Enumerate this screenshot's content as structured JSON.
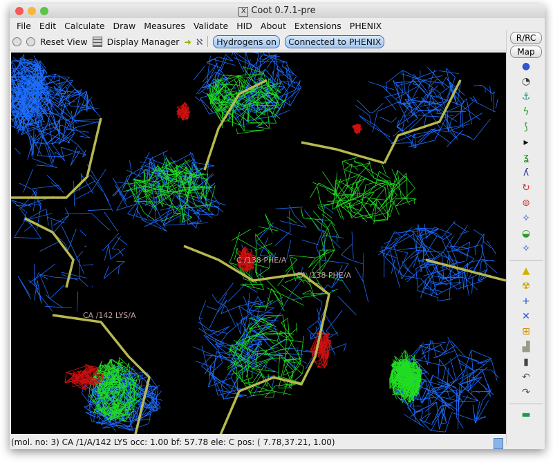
{
  "window": {
    "title": "Coot 0.7.1-pre",
    "title_icon": "x11-icon"
  },
  "menu": [
    "File",
    "Edit",
    "Calculate",
    "Draw",
    "Measures",
    "Validate",
    "HID",
    "About",
    "Extensions",
    "PHENIX"
  ],
  "toolbar": {
    "reset_view": "Reset View",
    "display_manager": "Display Manager",
    "hydrogens": "Hydrogens on",
    "phenix": "Connected to PHENIX"
  },
  "side": {
    "rrc": "R/RC",
    "map": "Map",
    "icons": [
      "refine-icon",
      "regularize-icon",
      "rigid-body-icon",
      "real-space-refine-icon",
      "backrub-icon",
      "more-arrow-icon",
      "rotamer-icon",
      "torsion-icon",
      "flip-peptide-icon",
      "side-chain-180-icon",
      "edit-chi-icon",
      "side-icon",
      "pep-flip-icon",
      "mutate-icon",
      "mutate-autofit-icon",
      "add-alt-conf-icon",
      "add-atom-icon",
      "place-atom-icon",
      "clear-icon",
      "delete-icon",
      "undo-icon",
      "redo-icon",
      "flag-icon"
    ]
  },
  "labels": {
    "lys": "CA /142 LYS/A",
    "phe_c": "C /138 PHE/A",
    "phe_ca": "CA /138 PHE/A"
  },
  "status": "(mol. no: 3)  CA /1/A/142 LYS occ:  1.00 bf: 57.78 ele:  C pos: ( 7.78,37.21, 1.00)",
  "colors": {
    "map_blue": "#1e6fff",
    "diff_green": "#22dd22",
    "diff_red": "#cc1010",
    "bonds": "#b8b850"
  }
}
